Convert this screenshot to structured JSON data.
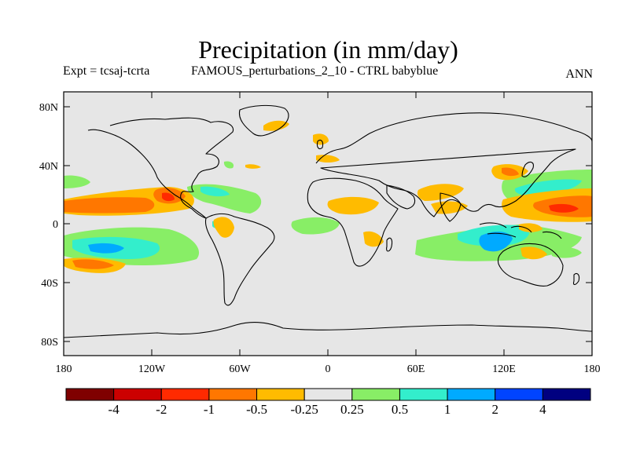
{
  "title": "Precipitation (in mm/day)",
  "subtitle_left": "Expt = tcsaj-tcrta",
  "subtitle_center": "FAMOUS_perturbations_2_10 - CTRL babyblue",
  "subtitle_right": "ANN",
  "lat_labels": [
    "80N",
    "40N",
    "0",
    "40S",
    "80S"
  ],
  "lon_labels": [
    "180",
    "120W",
    "60W",
    "0",
    "60E",
    "120E",
    "180"
  ],
  "colorbar": {
    "colors": [
      "#7f0000",
      "#cc0000",
      "#ff2a00",
      "#ff7700",
      "#ffbb00",
      "#e6e6e6",
      "#88ee66",
      "#33eecc",
      "#00aaff",
      "#0044ff",
      "#000080"
    ],
    "labels": [
      "-4",
      "-2",
      "-1",
      "-0.5",
      "-0.25",
      "0.25",
      "0.5",
      "1",
      "2",
      "4"
    ]
  },
  "colors": {
    "ocean_background": "#e6e6e6",
    "coast": "#000000"
  }
}
